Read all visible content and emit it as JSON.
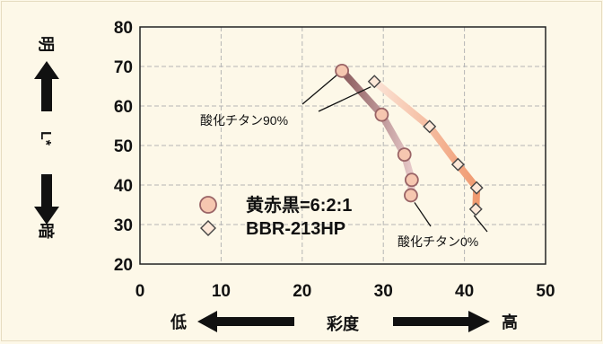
{
  "chart_data": {
    "type": "line",
    "xlabel": "彩度",
    "ylabel": "L*",
    "xlim": [
      0,
      50
    ],
    "ylim": [
      20,
      80
    ],
    "xticks": [
      0,
      10,
      20,
      30,
      40,
      50
    ],
    "yticks": [
      20,
      30,
      40,
      50,
      60,
      70,
      80
    ],
    "grid": true,
    "legend_position": "bottom-left",
    "y_direction_top": "明",
    "y_direction_bottom": "暗",
    "x_direction_left": "低",
    "x_direction_right": "高",
    "series": [
      {
        "name": "黄赤黒=6:2:1",
        "marker": "circle",
        "color": "#b87a7c",
        "fill": "#f6c7b0",
        "points": [
          [
            24.9,
            68.9
          ],
          [
            29.8,
            57.8
          ],
          [
            32.6,
            47.7
          ],
          [
            33.5,
            41.3
          ],
          [
            33.4,
            37.4
          ]
        ]
      },
      {
        "name": "BBR-213HP",
        "marker": "diamond",
        "color": "#f0a47c",
        "fill": "#fde8d8",
        "points": [
          [
            28.9,
            66.2
          ],
          [
            35.7,
            54.8
          ],
          [
            39.2,
            45.2
          ],
          [
            41.5,
            39.3
          ],
          [
            41.4,
            33.9
          ]
        ]
      }
    ],
    "annotations": [
      {
        "text": "酸化チタン90%",
        "target_series": 0,
        "target_point": 0
      },
      {
        "text": "酸化チタン0%",
        "target_series": 0,
        "target_point": 4
      }
    ]
  }
}
